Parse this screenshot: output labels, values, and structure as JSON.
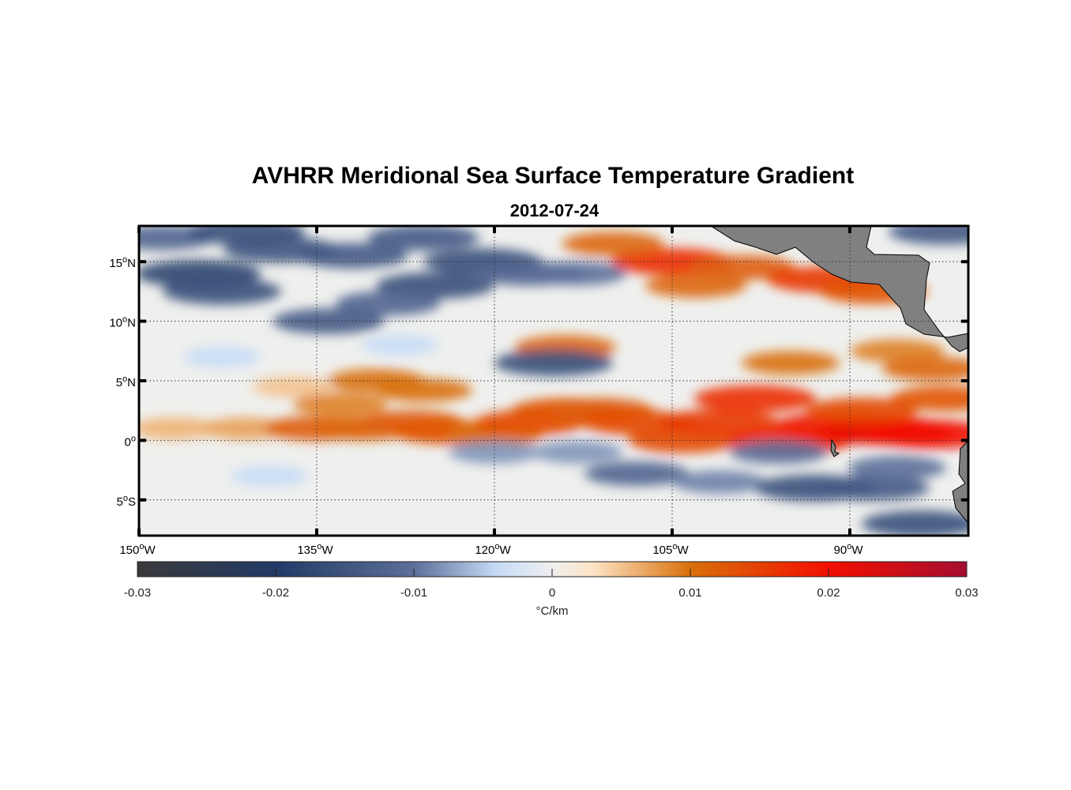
{
  "title": "AVHRR Meridional Sea Surface Temperature Gradient",
  "subtitle": "2012-07-24",
  "chart_data": {
    "type": "heatmap",
    "title": "AVHRR Meridional Sea Surface Temperature Gradient",
    "subtitle": "2012-07-24",
    "lon_range": [
      -150,
      -80
    ],
    "lat_range": [
      -8,
      18
    ],
    "lon_ticks": [
      {
        "value": -150,
        "label": "150",
        "suffix": "W"
      },
      {
        "value": -135,
        "label": "135",
        "suffix": "W"
      },
      {
        "value": -120,
        "label": "120",
        "suffix": "W"
      },
      {
        "value": -105,
        "label": "105",
        "suffix": "W"
      },
      {
        "value": -90,
        "label": "90",
        "suffix": "W"
      }
    ],
    "lat_ticks": [
      {
        "value": 15,
        "label": "15",
        "suffix": "N"
      },
      {
        "value": 10,
        "label": "10",
        "suffix": "N"
      },
      {
        "value": 5,
        "label": "5",
        "suffix": "N"
      },
      {
        "value": 0,
        "label": "0",
        "suffix": ""
      },
      {
        "value": -5,
        "label": "5",
        "suffix": "S"
      }
    ],
    "grid": true,
    "colorbar": {
      "label": "°C/km",
      "range": [
        -0.03,
        0.03
      ],
      "ticks": [
        {
          "value": -0.03,
          "label": "-0.03"
        },
        {
          "value": -0.02,
          "label": "-0.02"
        },
        {
          "value": -0.01,
          "label": "-0.01"
        },
        {
          "value": 0,
          "label": "0"
        },
        {
          "value": 0.01,
          "label": "0.01"
        },
        {
          "value": 0.02,
          "label": "0.02"
        },
        {
          "value": 0.03,
          "label": "0.03"
        }
      ],
      "colors": [
        {
          "v": -0.03,
          "c": "#3a3a3a"
        },
        {
          "v": -0.02,
          "c": "#223a66"
        },
        {
          "v": -0.01,
          "c": "#5b6f99"
        },
        {
          "v": -0.004,
          "c": "#c6dbf6"
        },
        {
          "v": 0,
          "c": "#efefef"
        },
        {
          "v": 0.003,
          "c": "#fde3c4"
        },
        {
          "v": 0.01,
          "c": "#d9700a"
        },
        {
          "v": 0.02,
          "c": "#f20f00"
        },
        {
          "v": 0.03,
          "c": "#a50e30"
        }
      ]
    },
    "features": [
      {
        "lon": -147,
        "lat": 1,
        "v": 0.006
      },
      {
        "lon": -141,
        "lat": 1,
        "v": 0.007
      },
      {
        "lon": -135,
        "lat": 1,
        "v": 0.012
      },
      {
        "lon": -131,
        "lat": 1,
        "v": 0.011
      },
      {
        "lon": -127,
        "lat": 1.5,
        "v": 0.012
      },
      {
        "lon": -124,
        "lat": 0.7,
        "v": 0.013
      },
      {
        "lon": -120,
        "lat": 0.5,
        "v": 0.01
      },
      {
        "lon": -117,
        "lat": 1.5,
        "v": 0.014
      },
      {
        "lon": -114,
        "lat": 2.5,
        "v": 0.013
      },
      {
        "lon": -111,
        "lat": 2.5,
        "v": 0.012
      },
      {
        "lon": -108,
        "lat": 1.5,
        "v": 0.014
      },
      {
        "lon": -104,
        "lat": 0,
        "v": 0.014
      },
      {
        "lon": -101,
        "lat": 1.5,
        "v": 0.016
      },
      {
        "lon": -98,
        "lat": 3.5,
        "v": 0.017
      },
      {
        "lon": -95,
        "lat": 0,
        "v": 0.018
      },
      {
        "lon": -91,
        "lat": 1.2,
        "v": 0.019
      },
      {
        "lon": -87,
        "lat": 0.8,
        "v": 0.021
      },
      {
        "lon": -83,
        "lat": 0.5,
        "v": 0.02
      },
      {
        "lon": -82,
        "lat": 3.5,
        "v": 0.013
      },
      {
        "lon": -89,
        "lat": 2.5,
        "v": 0.014
      },
      {
        "lon": -130,
        "lat": 5,
        "v": 0.01
      },
      {
        "lon": -126,
        "lat": 4.2,
        "v": 0.01
      },
      {
        "lon": -133,
        "lat": 3,
        "v": 0.009
      },
      {
        "lon": -137,
        "lat": 4.5,
        "v": 0.005
      },
      {
        "lon": -105,
        "lat": 15,
        "v": 0.017
      },
      {
        "lon": -99,
        "lat": 14.5,
        "v": 0.012
      },
      {
        "lon": -92,
        "lat": 13.5,
        "v": 0.016
      },
      {
        "lon": -88,
        "lat": 12.5,
        "v": 0.013
      },
      {
        "lon": -110,
        "lat": 16.5,
        "v": 0.011
      },
      {
        "lon": -103,
        "lat": 13,
        "v": 0.011
      },
      {
        "lon": -114,
        "lat": 7.8,
        "v": 0.011
      },
      {
        "lon": -95,
        "lat": 6.5,
        "v": 0.01
      },
      {
        "lon": -86,
        "lat": 7.5,
        "v": 0.009
      },
      {
        "lon": -83,
        "lat": 6,
        "v": 0.011
      },
      {
        "lon": -145,
        "lat": 14,
        "v": -0.018
      },
      {
        "lon": -143,
        "lat": 12.5,
        "v": -0.016
      },
      {
        "lon": -138,
        "lat": 16,
        "v": -0.015
      },
      {
        "lon": -148,
        "lat": 17,
        "v": -0.012
      },
      {
        "lon": -132,
        "lat": 15.5,
        "v": -0.014
      },
      {
        "lon": -125,
        "lat": 13,
        "v": -0.016
      },
      {
        "lon": -121,
        "lat": 15,
        "v": -0.016
      },
      {
        "lon": -117,
        "lat": 14,
        "v": -0.012
      },
      {
        "lon": -129,
        "lat": 11.5,
        "v": -0.012
      },
      {
        "lon": -134,
        "lat": 10,
        "v": -0.014
      },
      {
        "lon": -141,
        "lat": 17.5,
        "v": -0.016
      },
      {
        "lon": -126,
        "lat": 17,
        "v": -0.014
      },
      {
        "lon": -113,
        "lat": 14,
        "v": -0.01
      },
      {
        "lon": -115,
        "lat": 6.5,
        "v": -0.016
      },
      {
        "lon": -82,
        "lat": 17.5,
        "v": -0.014
      },
      {
        "lon": -120,
        "lat": -1,
        "v": -0.008
      },
      {
        "lon": -113,
        "lat": -1,
        "v": -0.008
      },
      {
        "lon": -108,
        "lat": -2.8,
        "v": -0.012
      },
      {
        "lon": -101,
        "lat": -3.5,
        "v": -0.009
      },
      {
        "lon": -93,
        "lat": -4,
        "v": -0.016
      },
      {
        "lon": -88,
        "lat": -4,
        "v": -0.014
      },
      {
        "lon": -96,
        "lat": -1,
        "v": -0.01
      },
      {
        "lon": -84,
        "lat": -7,
        "v": -0.016
      },
      {
        "lon": -86,
        "lat": -2.3,
        "v": -0.01
      },
      {
        "lon": -143,
        "lat": 7,
        "v": -0.004
      },
      {
        "lon": -128,
        "lat": 8,
        "v": -0.004
      },
      {
        "lon": -139,
        "lat": -3,
        "v": -0.004
      }
    ]
  }
}
